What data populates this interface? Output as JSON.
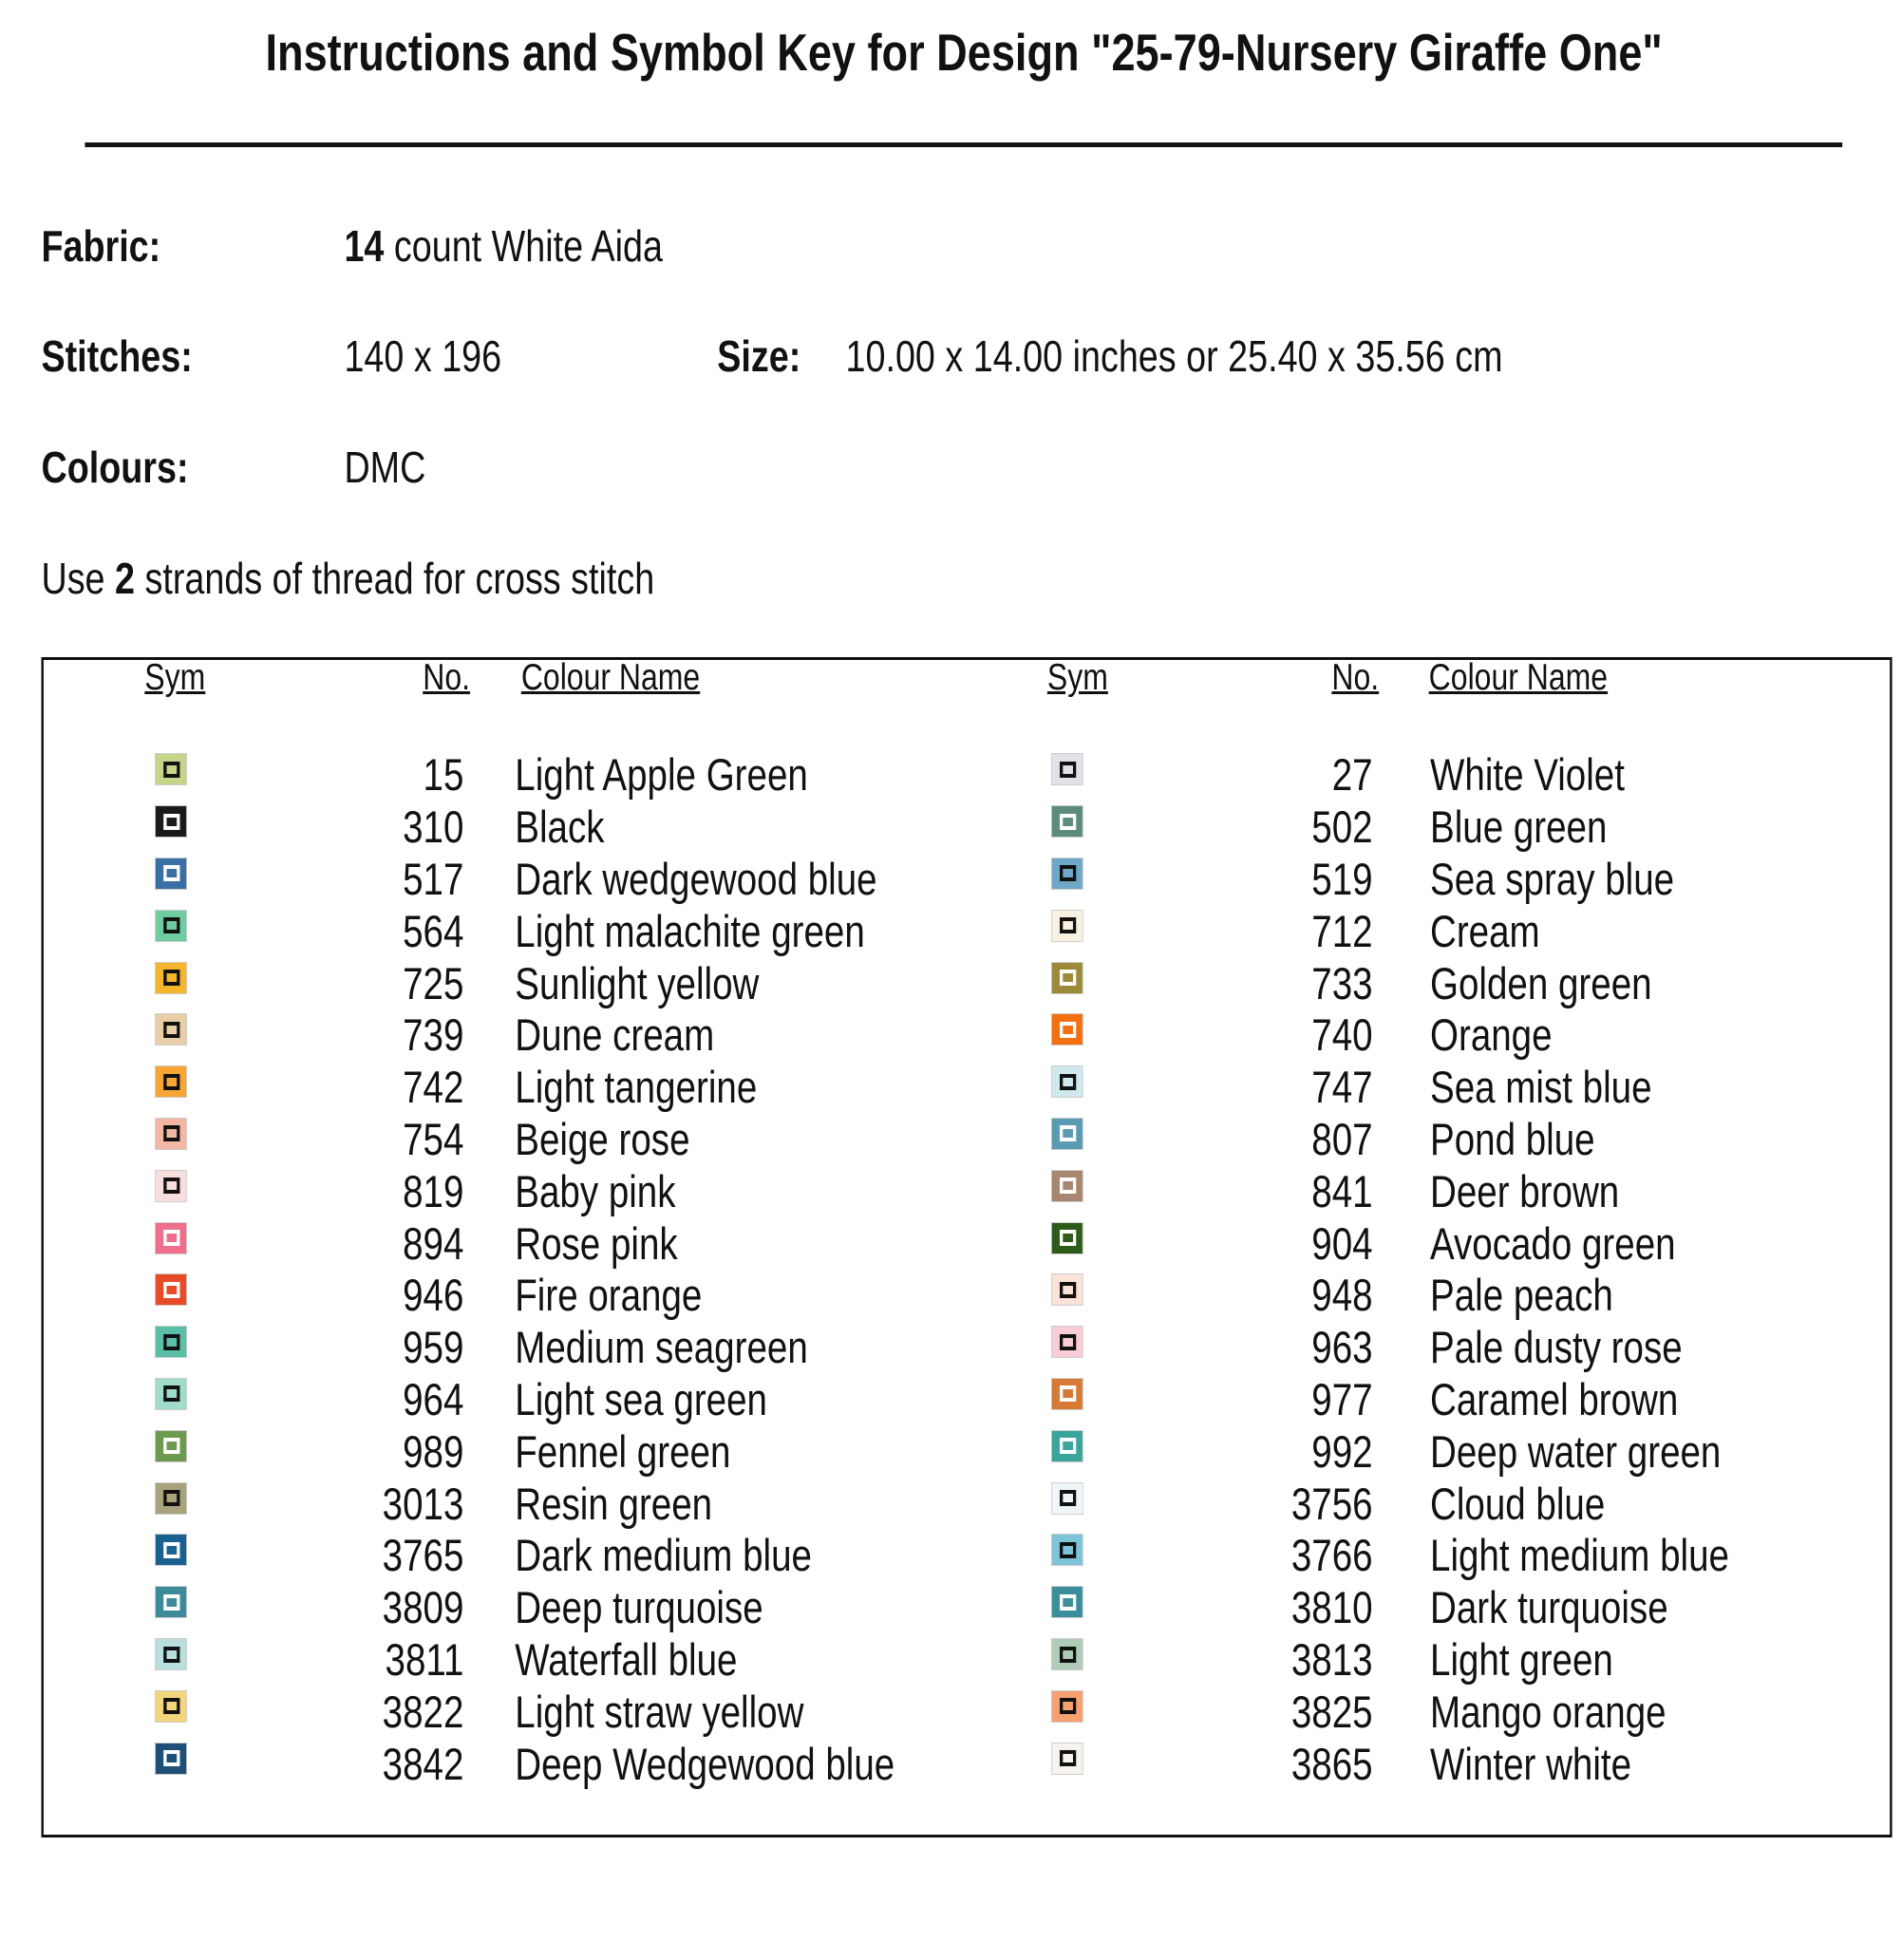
{
  "header": {
    "title": "Instructions and Symbol Key for Design \"25-79-Nursery Giraffe One\""
  },
  "info": {
    "fabric": {
      "label": "Fabric:",
      "count": "14",
      "text": "count White Aida"
    },
    "stitches": {
      "label": "Stitches:",
      "value": "140 x 196"
    },
    "size": {
      "label": "Size:",
      "value": "10.00 x 14.00 inches or 25.40 x 35.56 cm"
    },
    "colours": {
      "label": "Colours:",
      "value": "DMC"
    },
    "instruction": {
      "before": "Use",
      "strands": "2",
      "after": "strands of thread for cross stitch"
    }
  },
  "table": {
    "columns": [
      {
        "headers": [
          "Sym",
          "No.",
          "Colour Name"
        ],
        "rows": [
          {
            "color": "#c5d58a",
            "no": 15,
            "name": "Light Apple Green"
          },
          {
            "color": "#1a1a1a",
            "no": 310,
            "name": "Black"
          },
          {
            "color": "#3a6fa5",
            "no": 517,
            "name": "Dark wedgewood blue"
          },
          {
            "color": "#6fcca0",
            "no": 564,
            "name": "Light malachite green"
          },
          {
            "color": "#f5b52c",
            "no": 725,
            "name": "Sunlight yellow"
          },
          {
            "color": "#e8cfa8",
            "no": 739,
            "name": "Dune cream"
          },
          {
            "color": "#f7a635",
            "no": 742,
            "name": "Light tangerine"
          },
          {
            "color": "#f2b8a4",
            "no": 754,
            "name": "Beige rose"
          },
          {
            "color": "#f9dede",
            "no": 819,
            "name": "Baby pink"
          },
          {
            "color": "#ee6f8b",
            "no": 894,
            "name": "Rose pink"
          },
          {
            "color": "#e84b27",
            "no": 946,
            "name": "Fire orange"
          },
          {
            "color": "#5bbfa8",
            "no": 959,
            "name": "Medium seagreen"
          },
          {
            "color": "#9fdccb",
            "no": 964,
            "name": "Light sea green"
          },
          {
            "color": "#6d9a4e",
            "no": 989,
            "name": "Fennel green"
          },
          {
            "color": "#a8a37a",
            "no": 3013,
            "name": "Resin green"
          },
          {
            "color": "#1a6090",
            "no": 3765,
            "name": "Dark medium blue"
          },
          {
            "color": "#3d8a9a",
            "no": 3809,
            "name": "Deep turquoise"
          },
          {
            "color": "#b8dede",
            "no": 3811,
            "name": "Waterfall blue"
          },
          {
            "color": "#f2d67c",
            "no": 3822,
            "name": "Light straw yellow"
          },
          {
            "color": "#1e4f77",
            "no": 3842,
            "name": "Deep Wedgewood blue"
          }
        ]
      },
      {
        "headers": [
          "Sym",
          "No.",
          "Colour Name"
        ],
        "rows": [
          {
            "color": "#e4e0e8",
            "no": 27,
            "name": "White Violet"
          },
          {
            "color": "#5c8c7c",
            "no": 502,
            "name": "Blue green"
          },
          {
            "color": "#6fa8c6",
            "no": 519,
            "name": "Sea spray blue"
          },
          {
            "color": "#f8f1e2",
            "no": 712,
            "name": "Cream"
          },
          {
            "color": "#9c8a38",
            "no": 733,
            "name": "Golden green"
          },
          {
            "color": "#f36f10",
            "no": 740,
            "name": "Orange"
          },
          {
            "color": "#cfe9ee",
            "no": 747,
            "name": "Sea mist blue"
          },
          {
            "color": "#5a9ab3",
            "no": 807,
            "name": "Pond blue"
          },
          {
            "color": "#a88670",
            "no": 841,
            "name": "Deer brown"
          },
          {
            "color": "#2e5a1a",
            "no": 904,
            "name": "Avocado green"
          },
          {
            "color": "#fbe3d8",
            "no": 948,
            "name": "Pale peach"
          },
          {
            "color": "#f8cdd6",
            "no": 963,
            "name": "Pale dusty rose"
          },
          {
            "color": "#d67a36",
            "no": 977,
            "name": "Caramel brown"
          },
          {
            "color": "#3aa59a",
            "no": 992,
            "name": "Deep water green"
          },
          {
            "color": "#eef6fa",
            "no": 3756,
            "name": "Cloud blue"
          },
          {
            "color": "#7ec4d8",
            "no": 3766,
            "name": "Light medium blue"
          },
          {
            "color": "#3d8e9d",
            "no": 3810,
            "name": "Dark turquoise"
          },
          {
            "color": "#b0ccb8",
            "no": 3813,
            "name": "Light green"
          },
          {
            "color": "#f7a070",
            "no": 3825,
            "name": "Mango orange"
          },
          {
            "color": "#f6f3ee",
            "no": 3865,
            "name": "Winter white"
          }
        ]
      }
    ]
  }
}
